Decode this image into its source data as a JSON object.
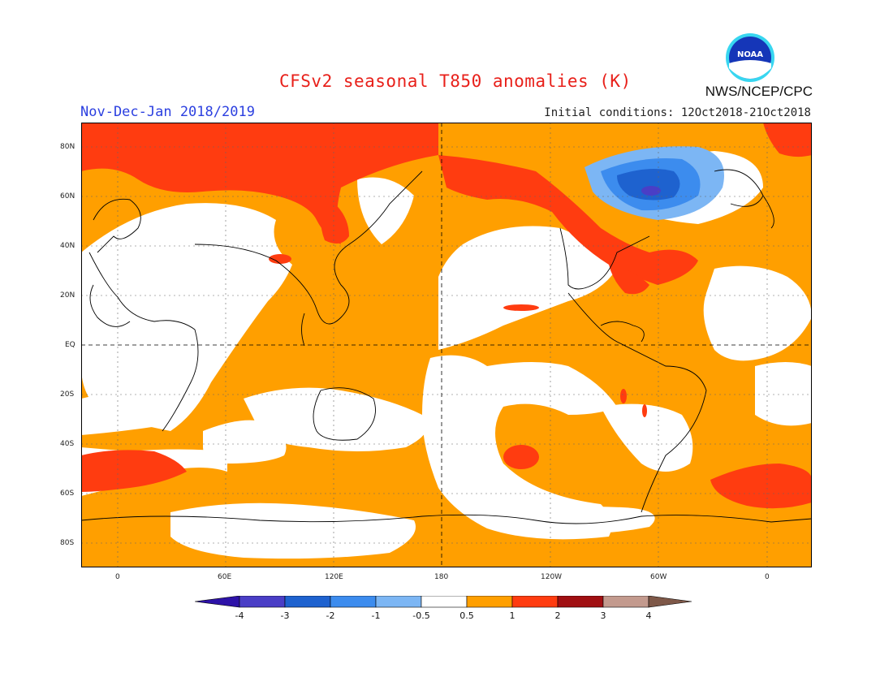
{
  "header": {
    "title": "CFSv2 seasonal T850 anomalies (K)",
    "period": "Nov-Dec-Jan 2018/2019",
    "initial_conditions": "Initial conditions: 12Oct2018-21Oct2018",
    "agency": "NWS/NCEP/CPC",
    "logo_text": "NOAA"
  },
  "axes": {
    "lat_labels": [
      "80N",
      "60N",
      "40N",
      "20N",
      "EQ",
      "20S",
      "40S",
      "60S",
      "80S"
    ],
    "lon_labels": [
      "0",
      "60E",
      "120E",
      "180",
      "120W",
      "60W",
      "0"
    ]
  },
  "colorbar": {
    "labels": [
      "-4",
      "-3",
      "-2",
      "-1",
      "-0.5",
      "0.5",
      "1",
      "2",
      "3",
      "4"
    ],
    "colors": [
      "#2d12a8",
      "#4a3ec6",
      "#1e62cf",
      "#3c8cee",
      "#7cb6f4",
      "#ffffff",
      "#ff9f00",
      "#ff3c10",
      "#a00f12",
      "#c39a8e",
      "#7e5848"
    ]
  },
  "colors": {
    "warm1": "#ff9f00",
    "warm2": "#ff3c10",
    "cool1": "#7cb6f4",
    "cool2": "#3c8cee",
    "cool3": "#1e62cf",
    "cool4": "#4a3ec6",
    "title": "#e8201a",
    "period": "#2b3fe0"
  }
}
